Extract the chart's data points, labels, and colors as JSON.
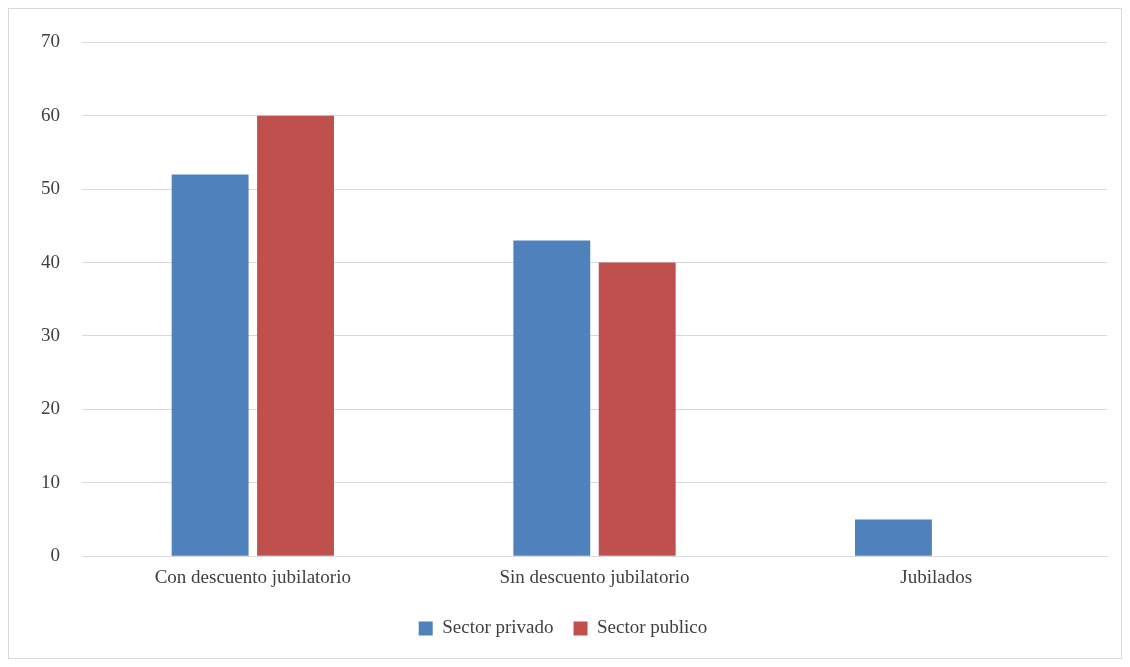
{
  "chart_data": {
    "type": "bar",
    "categories": [
      "Con descuento jubilatorio",
      "Sin descuento jubilatorio",
      "Jubilados"
    ],
    "series": [
      {
        "name": "Sector privado",
        "color": "#4f81bd",
        "values": [
          52,
          43,
          5
        ]
      },
      {
        "name": "Sector publico",
        "color": "#c0504d",
        "values": [
          60,
          40,
          0
        ]
      }
    ],
    "ylim": [
      0,
      70
    ],
    "yticks": [
      0,
      10,
      20,
      30,
      40,
      50,
      60,
      70
    ],
    "grid": "y",
    "legend": "bottom"
  }
}
